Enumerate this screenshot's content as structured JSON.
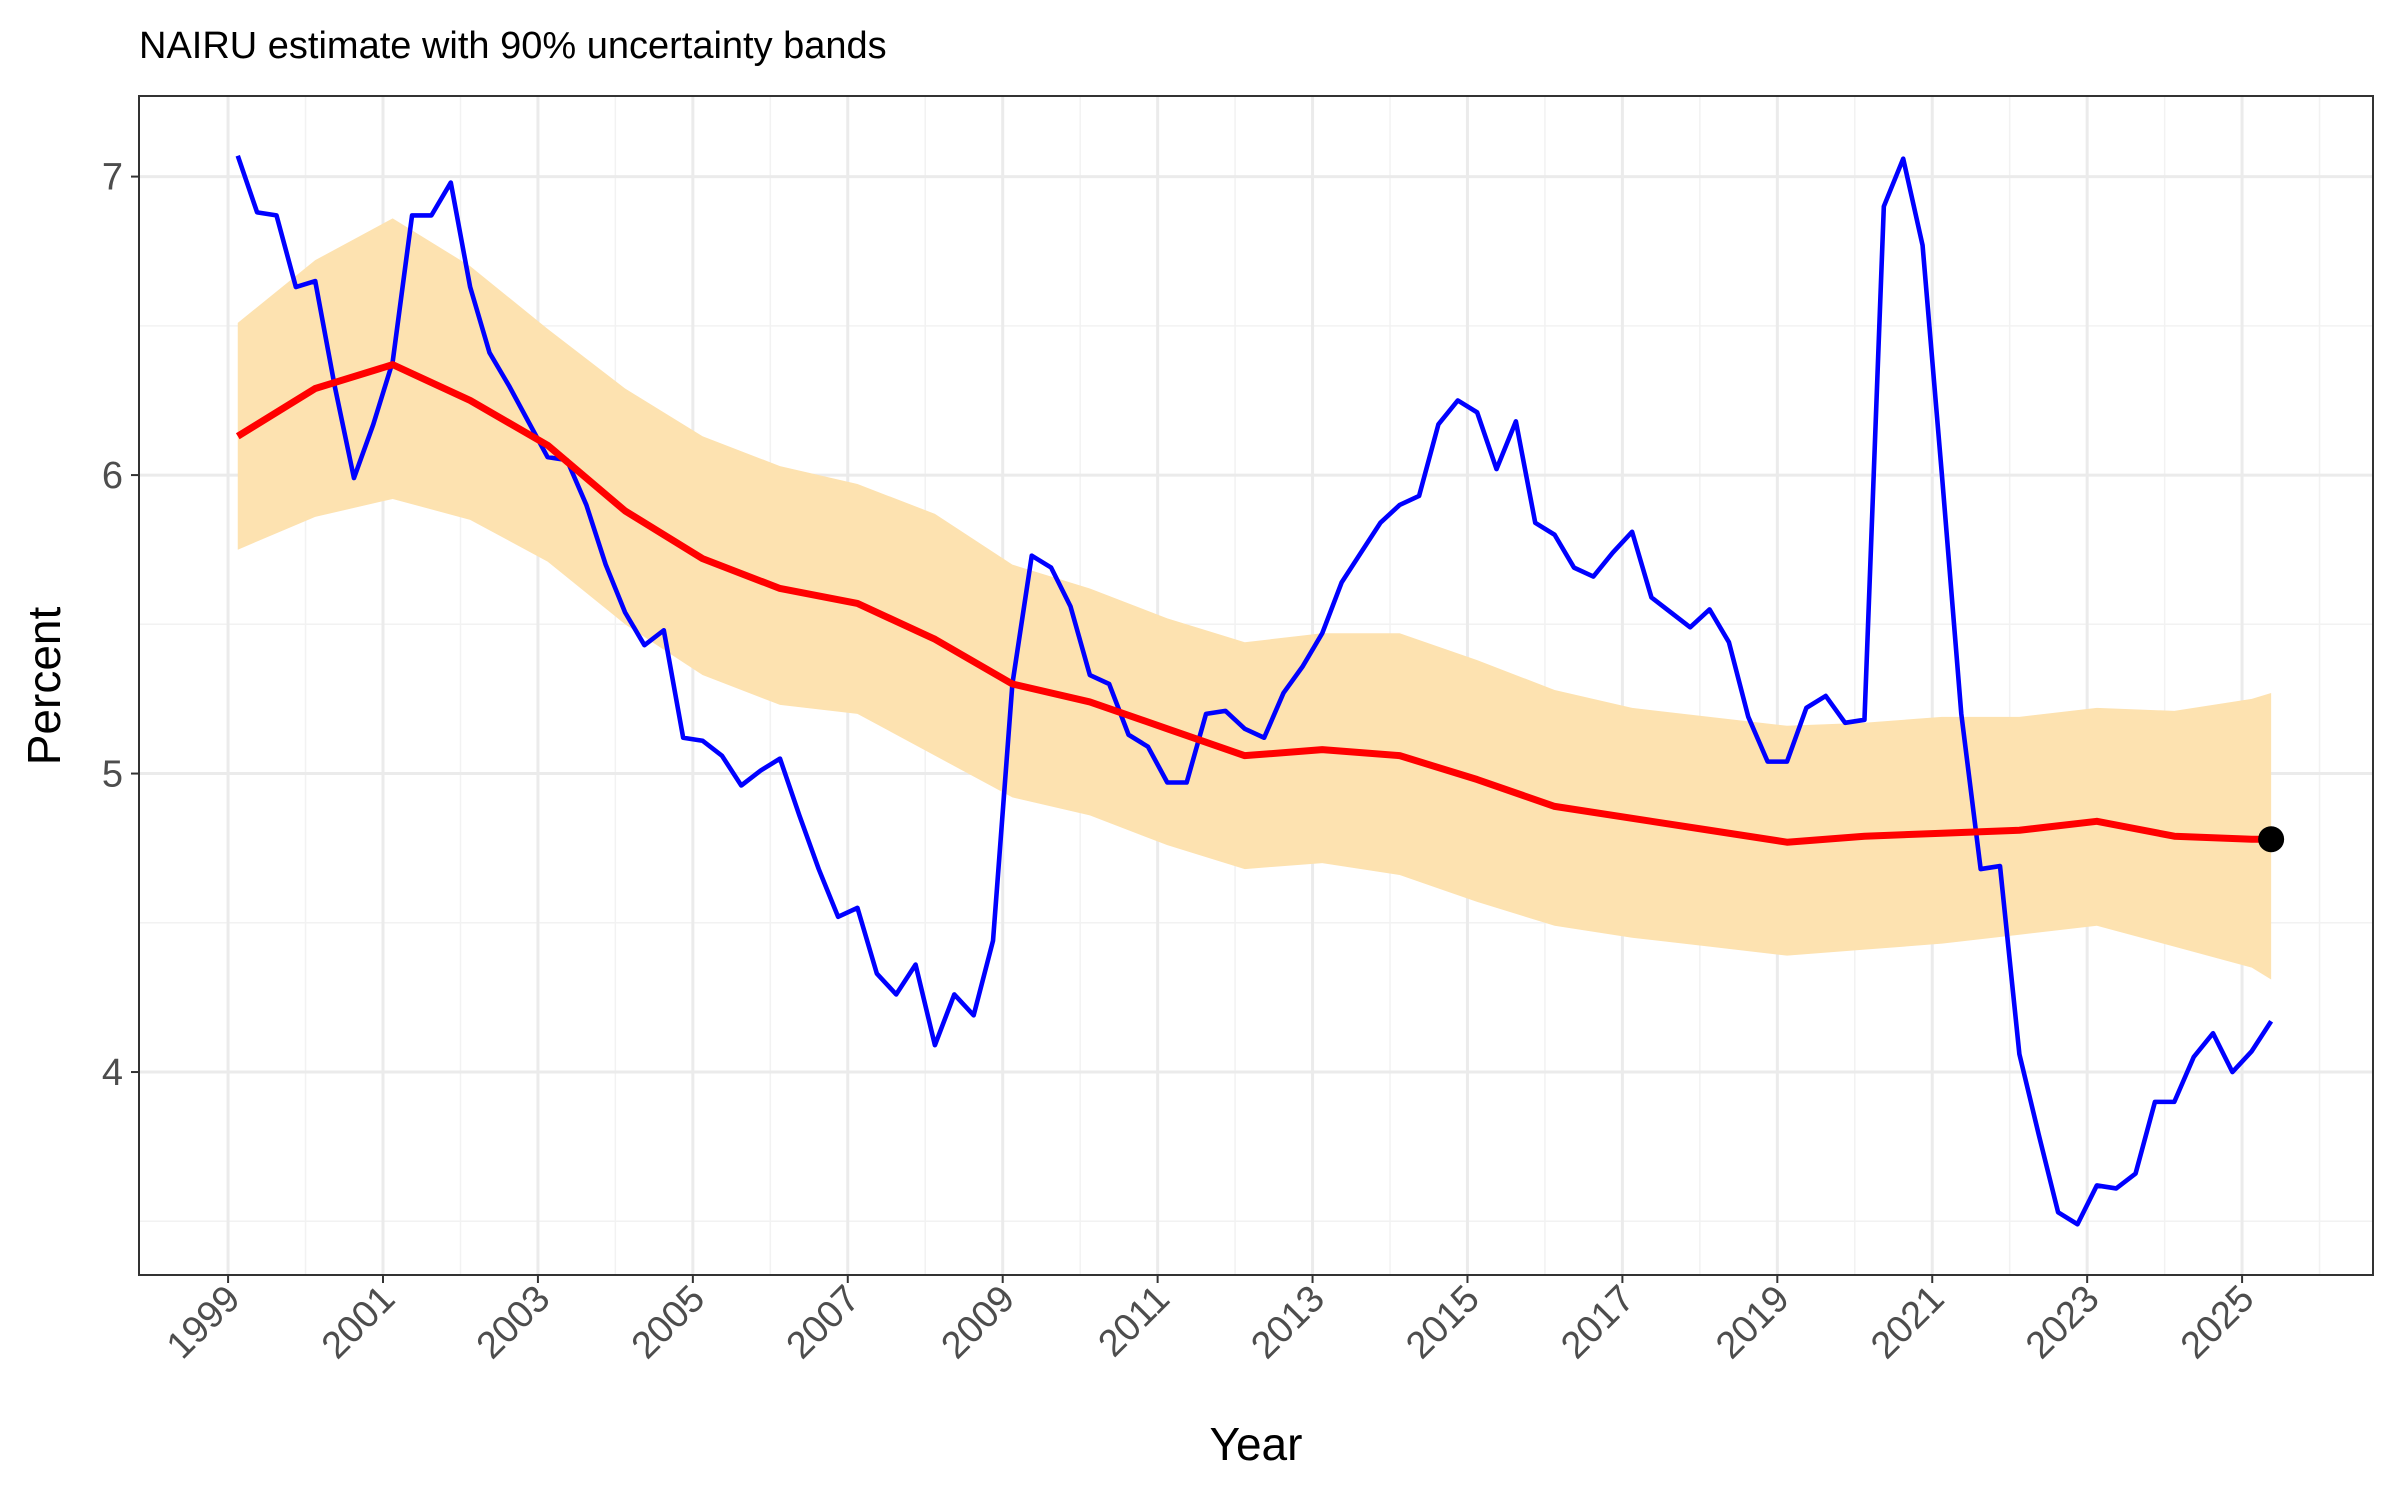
{
  "chart_data": {
    "type": "line",
    "title": "NAIRU estimate with 90% uncertainty bands",
    "x_label": "Year",
    "y_label": "Percent",
    "xlim": [
      1997.85,
      2026.69
    ],
    "ylim": [
      3.32,
      7.27
    ],
    "xticks": [
      1999,
      2001,
      2003,
      2005,
      2007,
      2009,
      2011,
      2013,
      2015,
      2017,
      2019,
      2021,
      2023,
      2025
    ],
    "xminor": [
      2000,
      2002,
      2004,
      2006,
      2008,
      2010,
      2012,
      2014,
      2016,
      2018,
      2020,
      2022,
      2024,
      2026
    ],
    "yticks": [
      4,
      5,
      6,
      7
    ],
    "yminor": [
      3.5,
      4.5,
      5.5,
      6.5
    ],
    "grid": true,
    "series": [
      {
        "kind": "band",
        "color": "#fde2b0",
        "x": [
          1999.125,
          2000.125,
          2001.125,
          2002.125,
          2003.125,
          2004.125,
          2005.125,
          2006.125,
          2007.125,
          2008.125,
          2009.125,
          2010.125,
          2011.125,
          2012.125,
          2013.125,
          2014.125,
          2015.125,
          2016.125,
          2017.125,
          2018.125,
          2019.125,
          2020.125,
          2021.125,
          2022.125,
          2023.125,
          2024.125,
          2025.125,
          2025.375
        ],
        "lower": [
          5.75,
          5.86,
          5.92,
          5.85,
          5.71,
          5.5,
          5.33,
          5.23,
          5.2,
          5.06,
          4.92,
          4.86,
          4.76,
          4.68,
          4.7,
          4.66,
          4.57,
          4.49,
          4.45,
          4.42,
          4.39,
          4.41,
          4.43,
          4.46,
          4.49,
          4.42,
          4.35,
          4.31
        ],
        "upper": [
          6.51,
          6.72,
          6.86,
          6.7,
          6.49,
          6.29,
          6.13,
          6.03,
          5.97,
          5.87,
          5.7,
          5.62,
          5.52,
          5.44,
          5.47,
          5.47,
          5.38,
          5.28,
          5.22,
          5.19,
          5.16,
          5.17,
          5.19,
          5.19,
          5.22,
          5.21,
          5.25,
          5.27
        ]
      },
      {
        "kind": "line",
        "color": "#0000ff",
        "width": 4.6,
        "x": [
          1999.125,
          1999.375,
          1999.625,
          1999.875,
          2000.125,
          2000.375,
          2000.625,
          2000.875,
          2001.125,
          2001.375,
          2001.625,
          2001.875,
          2002.125,
          2002.375,
          2002.625,
          2002.875,
          2003.125,
          2003.375,
          2003.625,
          2003.875,
          2004.125,
          2004.375,
          2004.625,
          2004.875,
          2005.125,
          2005.375,
          2005.625,
          2005.875,
          2006.125,
          2006.375,
          2006.625,
          2006.875,
          2007.125,
          2007.375,
          2007.625,
          2007.875,
          2008.125,
          2008.375,
          2008.625,
          2008.875,
          2009.125,
          2009.375,
          2009.625,
          2009.875,
          2010.125,
          2010.375,
          2010.625,
          2010.875,
          2011.125,
          2011.375,
          2011.625,
          2011.875,
          2012.125,
          2012.375,
          2012.625,
          2012.875,
          2013.125,
          2013.375,
          2013.625,
          2013.875,
          2014.125,
          2014.375,
          2014.625,
          2014.875,
          2015.125,
          2015.375,
          2015.625,
          2015.875,
          2016.125,
          2016.375,
          2016.625,
          2016.875,
          2017.125,
          2017.375,
          2017.625,
          2017.875,
          2018.125,
          2018.375,
          2018.625,
          2018.875,
          2019.125,
          2019.375,
          2019.625,
          2019.875,
          2020.125,
          2020.375,
          2020.625,
          2020.875,
          2021.125,
          2021.375,
          2021.625,
          2021.875,
          2022.125,
          2022.375,
          2022.625,
          2022.875,
          2023.125,
          2023.375,
          2023.625,
          2023.875,
          2024.125,
          2024.375,
          2024.625,
          2024.875,
          2025.125,
          2025.375
        ],
        "values": [
          7.07,
          6.88,
          6.87,
          6.63,
          6.65,
          6.3,
          5.99,
          6.17,
          6.38,
          6.87,
          6.87,
          6.98,
          6.63,
          6.41,
          6.3,
          6.18,
          6.06,
          6.05,
          5.9,
          5.7,
          5.54,
          5.43,
          5.48,
          5.12,
          5.11,
          5.06,
          4.96,
          5.01,
          5.05,
          4.86,
          4.68,
          4.52,
          4.55,
          4.33,
          4.26,
          4.36,
          4.09,
          4.26,
          4.19,
          4.44,
          5.3,
          5.73,
          5.69,
          5.56,
          5.33,
          5.3,
          5.13,
          5.09,
          4.97,
          4.97,
          5.2,
          5.21,
          5.15,
          5.12,
          5.27,
          5.36,
          5.47,
          5.64,
          5.74,
          5.84,
          5.9,
          5.93,
          6.17,
          6.25,
          6.21,
          6.02,
          6.18,
          5.84,
          5.8,
          5.69,
          5.66,
          5.74,
          5.81,
          5.59,
          5.54,
          5.49,
          5.55,
          5.44,
          5.19,
          5.04,
          5.04,
          5.22,
          5.26,
          5.17,
          5.18,
          6.9,
          7.06,
          6.77,
          6.0,
          5.2,
          4.68,
          4.69,
          4.06,
          3.79,
          3.53,
          3.49,
          3.62,
          3.61,
          3.66,
          3.9,
          3.9,
          4.05,
          4.13,
          4.0,
          4.07,
          4.17
        ]
      },
      {
        "kind": "line",
        "color": "#ff0000",
        "width": 7,
        "x": [
          1999.125,
          2000.125,
          2001.125,
          2002.125,
          2003.125,
          2004.125,
          2005.125,
          2006.125,
          2007.125,
          2008.125,
          2009.125,
          2010.125,
          2011.125,
          2012.125,
          2013.125,
          2014.125,
          2015.125,
          2016.125,
          2017.125,
          2018.125,
          2019.125,
          2020.125,
          2021.125,
          2022.125,
          2023.125,
          2024.125,
          2025.125,
          2025.375
        ],
        "values": [
          6.13,
          6.29,
          6.37,
          6.25,
          6.1,
          5.88,
          5.72,
          5.62,
          5.57,
          5.45,
          5.3,
          5.24,
          5.15,
          5.06,
          5.08,
          5.06,
          4.98,
          4.89,
          4.85,
          4.81,
          4.77,
          4.79,
          4.8,
          4.81,
          4.84,
          4.79,
          4.78,
          4.78
        ]
      },
      {
        "kind": "point",
        "color": "#000000",
        "x": [
          2025.375
        ],
        "values": [
          4.78
        ]
      }
    ]
  }
}
